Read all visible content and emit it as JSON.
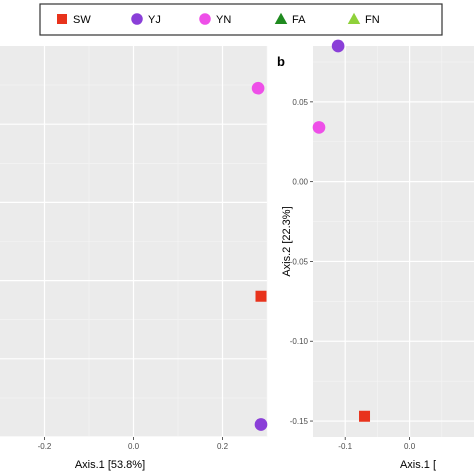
{
  "legend": {
    "items": [
      {
        "label": "SW",
        "shape": "square",
        "color": "#e8331c"
      },
      {
        "label": "YJ",
        "shape": "circle",
        "color": "#8a3fd8"
      },
      {
        "label": "YN",
        "shape": "circle",
        "color": "#ee4fe8"
      },
      {
        "label": "FA",
        "shape": "triangle",
        "color": "#1f8a1f"
      },
      {
        "label": "FN",
        "shape": "triangle",
        "color": "#8fd13a"
      }
    ]
  },
  "chart_data": [
    {
      "type": "scatter",
      "panel_label": "",
      "xlabel": "Axis.1   [53.8%]",
      "ylabel": "",
      "xlim": [
        -0.3,
        0.3
      ],
      "ylim": [
        -0.15,
        0.1
      ],
      "x_ticks": [
        "-0.2",
        "0.0",
        "0.2"
      ],
      "y_ticks": [],
      "grid": true,
      "series": [
        {
          "name": "SW",
          "points": [
            {
              "x": 0.32,
              "y": -0.06
            }
          ]
        },
        {
          "name": "YJ",
          "points": [
            {
              "x": 0.32,
              "y": -0.142
            }
          ]
        },
        {
          "name": "YN",
          "points": [
            {
              "x": 0.28,
              "y": 0.073
            }
          ]
        }
      ]
    },
    {
      "type": "scatter",
      "panel_label": "b",
      "xlabel": "Axis.1   [",
      "ylabel": "Axis.2   [22.3%]",
      "xlim": [
        -0.15,
        0.1
      ],
      "ylim": [
        -0.16,
        0.085
      ],
      "x_ticks": [
        "-0.1",
        "0.0"
      ],
      "y_ticks": [
        "0.05",
        "0.00",
        "-0.05",
        "-0.10",
        "-0.15"
      ],
      "grid": true,
      "series": [
        {
          "name": "SW",
          "points": [
            {
              "x": -0.07,
              "y": -0.147
            }
          ]
        },
        {
          "name": "YJ",
          "points": [
            {
              "x": -0.111,
              "y": 0.085
            }
          ]
        },
        {
          "name": "YN",
          "points": [
            {
              "x": -0.142,
              "y": 0.034
            }
          ]
        }
      ]
    }
  ]
}
